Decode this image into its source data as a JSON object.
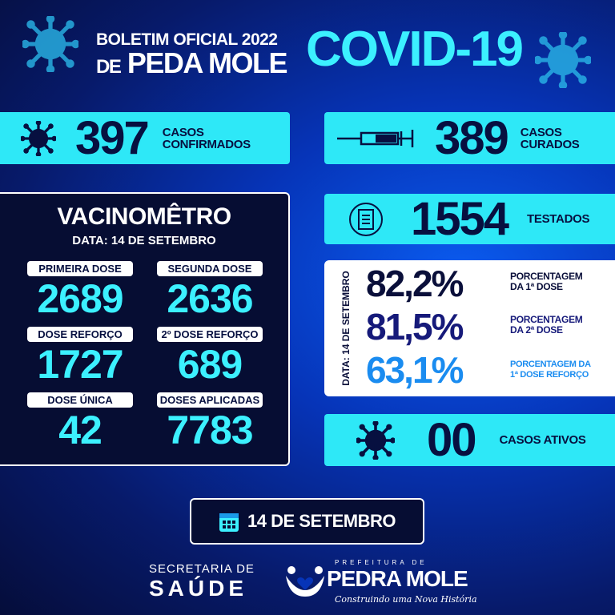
{
  "header": {
    "line1": "BOLETIM OFICIAL 2022",
    "line2_prefix": "DE",
    "line2": "PEDA MOLE",
    "title": "COVID-19"
  },
  "confirmados": {
    "value": "397",
    "label1": "CASOS",
    "label2": "CONFIRMADOS",
    "icon": "virus-icon"
  },
  "curados": {
    "value": "389",
    "label1": "CASOS",
    "label2": "CURADOS",
    "icon": "syringe-icon"
  },
  "testados": {
    "value": "1554",
    "label": "TESTADOS",
    "icon": "clipboard-icon"
  },
  "vacinometro": {
    "title": "VACINOMÊTRO",
    "date": "DATA: 14 DE SETEMBRO",
    "items": [
      {
        "label": "PRIMEIRA DOSE",
        "value": "2689"
      },
      {
        "label": "SEGUNDA DOSE",
        "value": "2636"
      },
      {
        "label": "DOSE REFORÇO",
        "value": "1727"
      },
      {
        "label": "2º DOSE REFORÇO",
        "value": "689"
      },
      {
        "label": "DOSE ÚNICA",
        "value": "42"
      },
      {
        "label": "DOSES APLICADAS",
        "value": "7783"
      }
    ]
  },
  "percentages": {
    "side_label": "DATA: 14 DE SETEMBRO",
    "items": [
      {
        "value": "82,2%",
        "label1": "PORCENTAGEM",
        "label2": "DA 1ª DOSE",
        "color": "#0a0f3a"
      },
      {
        "value": "81,5%",
        "label1": "PORCENTAGEM",
        "label2": "DA 2ª DOSE",
        "color": "#161a7a"
      },
      {
        "value": "63,1%",
        "label1": "PORCENTAGEM DA",
        "label2": "1ª DOSE REFORÇO",
        "color": "#1a8cf0"
      }
    ]
  },
  "ativos": {
    "value": "00",
    "label": "CASOS ATIVOS",
    "icon": "virus-icon"
  },
  "date_badge": {
    "text": "14 DE SETEMBRO",
    "icon": "calendar-icon"
  },
  "footer": {
    "sec1": "SECRETARIA DE",
    "sec2": "SAÚDE",
    "pref_top": "PREFEITURA DE",
    "pref_name": "PEDRA MOLE",
    "pref_slogan": "Construindo uma Nova História"
  },
  "colors": {
    "cyan": "#2ee8f7",
    "navy": "#060d33"
  }
}
